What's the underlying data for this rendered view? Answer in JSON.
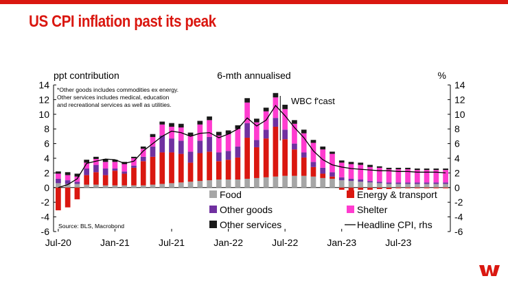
{
  "page": {
    "title": "US CPI inflation past its peak",
    "brand_color": "#da1710"
  },
  "logo": {
    "icon": "westpac-w-logo-icon"
  },
  "chart_data": {
    "type": "bar",
    "stacked": true,
    "left_axis_label": "ppt contribution",
    "subtitle": "6-mth annualised",
    "right_axis_label": "%",
    "ylim": [
      -6,
      14
    ],
    "yticks": [
      14,
      12,
      10,
      8,
      6,
      4,
      2,
      0,
      -2,
      -4,
      -6
    ],
    "right_ylim": [
      -6,
      14
    ],
    "x_tick_labels": [
      "Jul-20",
      "Jan-21",
      "Jul-21",
      "Jan-22",
      "Jul-22",
      "Jan-23",
      "Jul-23"
    ],
    "x_tick_positions": [
      0,
      6,
      12,
      18,
      24,
      30,
      36
    ],
    "forecast_annotation": "WBC f'cast",
    "forecast_start_index": 24,
    "footnote": [
      "*Other goods includes commodities ex energy.",
      "Other services includes medical, education",
      "and recreational services as well as utilities."
    ],
    "source": "Source: BLS, Macrobond",
    "categories": [
      "Jul-20",
      "Aug-20",
      "Sep-20",
      "Oct-20",
      "Nov-20",
      "Dec-20",
      "Jan-21",
      "Feb-21",
      "Mar-21",
      "Apr-21",
      "May-21",
      "Jun-21",
      "Jul-21",
      "Aug-21",
      "Sep-21",
      "Oct-21",
      "Nov-21",
      "Dec-21",
      "Jan-22",
      "Feb-22",
      "Mar-22",
      "Apr-22",
      "May-22",
      "Jun-22",
      "Jul-22",
      "Aug-22",
      "Sep-22",
      "Oct-22",
      "Nov-22",
      "Dec-22",
      "Jan-23",
      "Feb-23",
      "Mar-23",
      "Apr-23",
      "May-23",
      "Jun-23",
      "Jul-23",
      "Aug-23",
      "Sep-23",
      "Oct-23",
      "Nov-23",
      "Dec-23"
    ],
    "series": [
      {
        "name": "Food",
        "color": "#a6a6a6",
        "values": [
          0.6,
          0.5,
          0.5,
          0.4,
          0.4,
          0.3,
          0.3,
          0.3,
          0.3,
          0.3,
          0.4,
          0.5,
          0.6,
          0.7,
          0.8,
          0.9,
          1.0,
          1.1,
          1.1,
          1.1,
          1.2,
          1.3,
          1.4,
          1.5,
          1.6,
          1.6,
          1.6,
          1.5,
          1.3,
          1.2,
          1.0,
          0.9,
          0.8,
          0.7,
          0.6,
          0.5,
          0.5,
          0.5,
          0.5,
          0.5,
          0.5,
          0.5
        ]
      },
      {
        "name": "Energy & transport",
        "color": "#da1710",
        "values": [
          -3.1,
          -2.7,
          -1.6,
          1.3,
          1.7,
          1.4,
          2.0,
          1.6,
          2.4,
          3.3,
          3.8,
          4.3,
          4.2,
          3.9,
          2.6,
          3.8,
          3.9,
          2.5,
          2.7,
          3.0,
          5.6,
          4.2,
          5.3,
          6.8,
          5.0,
          3.6,
          2.5,
          1.3,
          0.6,
          0.3,
          -0.3,
          -0.4,
          -0.3,
          -0.3,
          -0.2,
          -0.2,
          -0.1,
          -0.1,
          -0.1,
          -0.1,
          -0.1,
          -0.1
        ]
      },
      {
        "name": "Other goods",
        "color": "#7030a0",
        "values": [
          0.6,
          0.5,
          0.3,
          0.9,
          1.0,
          0.9,
          0.3,
          0.3,
          0.3,
          0.6,
          1.4,
          2.3,
          1.9,
          1.8,
          1.5,
          1.7,
          2.0,
          1.2,
          1.2,
          1.5,
          2.0,
          1.0,
          1.2,
          1.2,
          1.3,
          0.8,
          0.7,
          0.7,
          0.8,
          0.6,
          0.4,
          0.3,
          0.3,
          0.2,
          0.2,
          0.2,
          0.2,
          0.2,
          0.2,
          0.2,
          0.2,
          0.2
        ]
      },
      {
        "name": "Shelter",
        "color": "#ff3ccf",
        "values": [
          0.7,
          0.7,
          0.7,
          0.8,
          0.8,
          0.9,
          0.9,
          1.0,
          1.0,
          1.1,
          1.3,
          1.5,
          1.6,
          1.8,
          2.2,
          2.2,
          2.3,
          2.3,
          2.3,
          2.4,
          2.8,
          2.4,
          2.5,
          2.8,
          2.8,
          2.7,
          2.6,
          2.6,
          2.5,
          2.5,
          2.0,
          2.0,
          2.0,
          1.9,
          1.9,
          1.8,
          1.8,
          1.8,
          1.7,
          1.7,
          1.7,
          1.7
        ]
      },
      {
        "name": "Other services",
        "color": "#1a1a1a",
        "values": [
          0.3,
          0.4,
          0.4,
          0.4,
          0.3,
          0.4,
          0.3,
          0.3,
          0.2,
          0.3,
          0.4,
          0.4,
          0.5,
          0.5,
          0.4,
          0.5,
          0.5,
          0.5,
          0.5,
          0.5,
          0.6,
          0.5,
          0.5,
          0.6,
          0.6,
          0.5,
          0.5,
          0.4,
          0.4,
          0.3,
          0.3,
          0.3,
          0.3,
          0.3,
          0.2,
          0.2,
          0.2,
          0.2,
          0.2,
          0.2,
          0.2,
          0.2
        ]
      }
    ],
    "line": {
      "name": "Headline CPI, rhs",
      "axis": "right",
      "color": "#000000",
      "values": [
        0.0,
        0.4,
        1.2,
        3.3,
        3.6,
        3.9,
        3.8,
        3.3,
        3.6,
        5.0,
        6.0,
        7.0,
        7.7,
        7.5,
        7.0,
        7.4,
        7.5,
        6.8,
        7.3,
        8.0,
        9.5,
        8.4,
        9.2,
        11.2,
        9.8,
        8.2,
        6.8,
        5.0,
        3.8,
        3.1,
        2.8,
        2.6,
        2.5,
        2.4,
        2.3,
        2.3,
        2.2,
        2.2,
        2.1,
        2.1,
        2.1,
        2.0
      ]
    },
    "legend": [
      {
        "label": "Food",
        "type": "swatch",
        "color": "#a6a6a6"
      },
      {
        "label": "Energy & transport",
        "type": "swatch",
        "color": "#da1710"
      },
      {
        "label": "Other goods",
        "type": "swatch",
        "color": "#7030a0"
      },
      {
        "label": "Shelter",
        "type": "swatch",
        "color": "#ff3ccf"
      },
      {
        "label": "Other services",
        "type": "swatch",
        "color": "#1a1a1a"
      },
      {
        "label": "Headline CPI, rhs",
        "type": "line",
        "color": "#000000"
      }
    ],
    "legend_placement": "bottom-right",
    "grid": false
  }
}
